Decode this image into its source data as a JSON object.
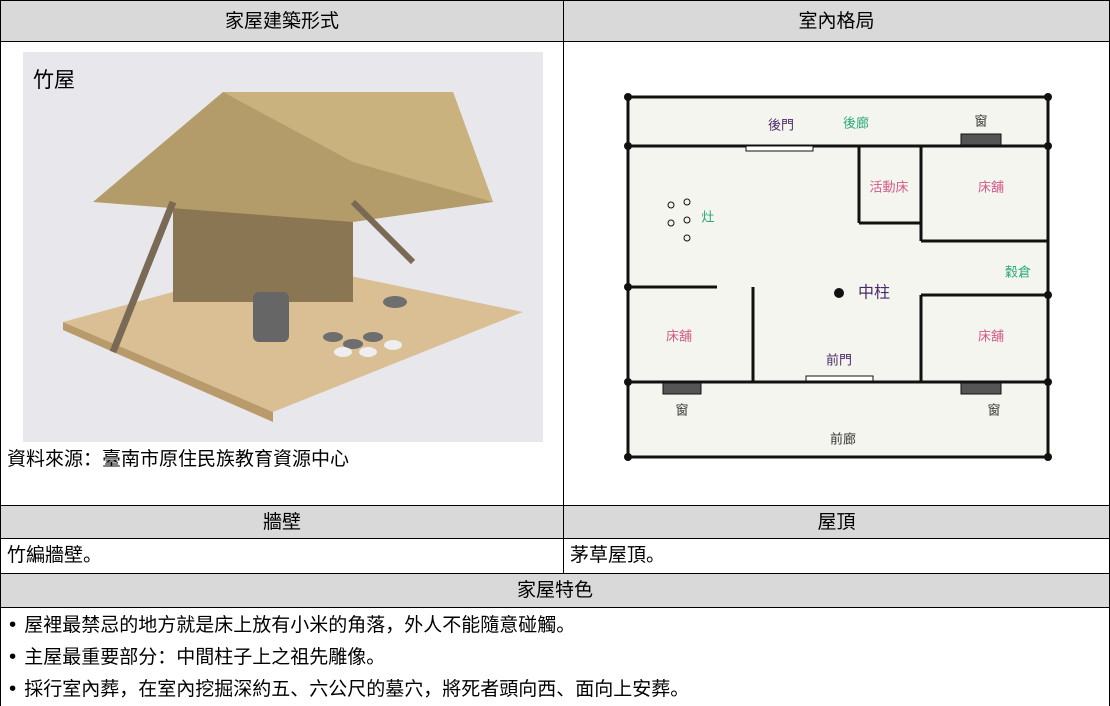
{
  "table": {
    "headers": [
      "家屋建築形式",
      "室內格局"
    ],
    "photo": {
      "title": "竹屋",
      "source": "資料來源：臺南市原住民族教育資源中心"
    },
    "floor_plan": {
      "labels": [
        "後門",
        "後廊",
        "窗",
        "活動床",
        "床舖",
        "灶",
        "穀倉",
        "中柱",
        "床舖",
        "床舖",
        "前門",
        "窗",
        "窗",
        "前廊"
      ]
    },
    "sub_headers": [
      "牆壁",
      "屋頂"
    ],
    "sub_values": [
      "竹編牆壁。",
      "茅草屋頂。"
    ],
    "feature_header": "家屋特色",
    "features": [
      "屋裡最禁忌的地方就是床上放有小米的角落，外人不能隨意碰觸。",
      "主屋最重要部分：中間柱子上之祖先雕像。",
      "採行室內葬，在室內挖掘深約五、六公尺的墓穴，將死者頭向西、面向上安葬。"
    ]
  }
}
